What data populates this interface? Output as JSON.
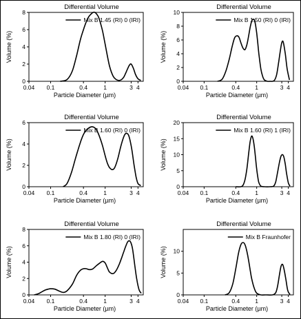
{
  "chart_data": [
    {
      "type": "line",
      "title": "Differential Volume",
      "xlabel": "Particle Diameter (µm)",
      "ylabel": "Volume (%)",
      "xscale": "log",
      "xlim": [
        0.04,
        5
      ],
      "ylim": [
        0,
        8
      ],
      "xticks": [
        0.04,
        0.1,
        0.4,
        1,
        3,
        4
      ],
      "xtick_labels": [
        "0.04",
        "0.1",
        "0.4",
        "1",
        "3",
        "4"
      ],
      "yticks": [
        0,
        2,
        4,
        6,
        8
      ],
      "legend_position": "top-right",
      "series": [
        {
          "name": "Mix B 1.45 (RI) 0 (IRI)",
          "x": [
            0.15,
            0.2,
            0.25,
            0.3,
            0.35,
            0.4,
            0.45,
            0.5,
            0.55,
            0.6,
            0.65,
            0.7,
            0.75,
            0.8,
            0.9,
            1.0,
            1.2,
            1.4,
            1.6,
            1.8,
            2.0,
            2.2,
            2.4,
            2.6,
            2.8,
            3.0,
            3.3,
            3.6,
            4.0,
            4.5
          ],
          "y": [
            0,
            0.2,
            1.2,
            3.0,
            4.8,
            6.0,
            6.9,
            7.5,
            7.8,
            8.0,
            8.0,
            7.8,
            7.5,
            7.0,
            5.8,
            4.3,
            1.8,
            0.6,
            0.2,
            0.1,
            0.2,
            0.5,
            1.0,
            1.5,
            1.9,
            2.0,
            1.5,
            0.8,
            0.3,
            0.1
          ]
        }
      ]
    },
    {
      "type": "line",
      "title": "Differential Volume",
      "xlabel": "Particle Diameter (µm)",
      "ylabel": "Volume (%)",
      "xscale": "log",
      "xlim": [
        0.04,
        5
      ],
      "ylim": [
        0,
        10
      ],
      "xticks": [
        0.04,
        0.1,
        0.4,
        1,
        3,
        4
      ],
      "xtick_labels": [
        "0.04",
        "0.1",
        "0.4",
        "1",
        "3",
        "4"
      ],
      "yticks": [
        0,
        2,
        4,
        6,
        8,
        10
      ],
      "legend_position": "top-right",
      "series": [
        {
          "name": "Mix B 1.50 (RI) 0 (IRI)",
          "x": [
            0.18,
            0.22,
            0.26,
            0.3,
            0.34,
            0.38,
            0.42,
            0.46,
            0.5,
            0.55,
            0.6,
            0.65,
            0.7,
            0.75,
            0.8,
            0.85,
            0.9,
            0.95,
            1.0,
            1.05,
            1.1,
            1.2,
            1.3,
            1.4,
            1.6,
            1.8,
            2.0,
            2.2,
            2.4,
            2.6,
            2.8,
            3.0,
            3.2,
            3.5,
            3.8,
            4.2
          ],
          "y": [
            0,
            0.3,
            1.5,
            3.2,
            5.0,
            6.3,
            6.6,
            6.4,
            5.6,
            4.8,
            4.6,
            5.3,
            6.5,
            7.8,
            8.7,
            9.0,
            8.9,
            8.2,
            7.0,
            5.5,
            4.0,
            1.8,
            0.7,
            0.2,
            0,
            0,
            0,
            0.2,
            1.0,
            2.6,
            4.3,
            5.6,
            5.7,
            4.0,
            1.8,
            0.2
          ]
        }
      ]
    },
    {
      "type": "line",
      "title": "Differential Volume",
      "xlabel": "Particle Diameter (µm)",
      "ylabel": "Volume (%)",
      "xscale": "log",
      "xlim": [
        0.04,
        5
      ],
      "ylim": [
        0,
        6
      ],
      "xticks": [
        0.04,
        0.1,
        0.4,
        1,
        3,
        4
      ],
      "xtick_labels": [
        "0.04",
        "0.1",
        "0.4",
        "1",
        "3",
        "4"
      ],
      "yticks": [
        0,
        2,
        4,
        6
      ],
      "legend_position": "top-right",
      "series": [
        {
          "name": "Mix B 1.60 (RI) 0 (IRI)",
          "x": [
            0.17,
            0.2,
            0.24,
            0.28,
            0.32,
            0.36,
            0.4,
            0.45,
            0.5,
            0.55,
            0.6,
            0.65,
            0.7,
            0.8,
            0.9,
            1.0,
            1.1,
            1.2,
            1.35,
            1.5,
            1.7,
            1.9,
            2.1,
            2.3,
            2.5,
            2.7,
            2.9,
            3.1,
            3.4,
            3.7,
            4.0,
            4.5
          ],
          "y": [
            0,
            0.3,
            1.3,
            2.5,
            3.5,
            4.3,
            4.9,
            5.3,
            5.5,
            5.6,
            5.6,
            5.5,
            5.3,
            4.6,
            3.8,
            2.9,
            2.2,
            1.8,
            1.6,
            1.8,
            2.6,
            3.6,
            4.4,
            4.9,
            5.0,
            4.8,
            4.2,
            3.4,
            2.0,
            0.9,
            0.3,
            0.1
          ]
        }
      ]
    },
    {
      "type": "line",
      "title": "Differential Volume",
      "xlabel": "Particle Diameter (µm)",
      "ylabel": "Volume (%)",
      "xscale": "log",
      "xlim": [
        0.04,
        5
      ],
      "ylim": [
        0,
        20
      ],
      "xticks": [
        0.04,
        0.1,
        0.4,
        1,
        3,
        4
      ],
      "xtick_labels": [
        "0.04",
        "0.1",
        "0.4",
        "1",
        "3",
        "4"
      ],
      "yticks": [
        0,
        5,
        10,
        15,
        20
      ],
      "legend_position": "top-right",
      "series": [
        {
          "name": "Mix B 1.60 (RI) 1 (IRI)",
          "x": [
            0.4,
            0.5,
            0.55,
            0.6,
            0.65,
            0.7,
            0.75,
            0.8,
            0.85,
            0.9,
            0.95,
            1.0,
            1.05,
            1.1,
            1.2,
            1.4,
            1.8,
            2.1,
            2.3,
            2.5,
            2.7,
            2.9,
            3.1,
            3.3,
            3.5,
            3.7,
            4.0,
            4.3
          ],
          "y": [
            0,
            0,
            0.5,
            2.2,
            5.5,
            10.0,
            14.0,
            15.8,
            15.0,
            12.5,
            9.0,
            5.5,
            3.0,
            1.3,
            0.2,
            0,
            0,
            0.2,
            1.5,
            4.5,
            7.5,
            9.5,
            10.0,
            9.2,
            7.0,
            4.2,
            1.2,
            0.2
          ]
        }
      ]
    },
    {
      "type": "line",
      "title": "Differential Volume",
      "xlabel": "Particle Diameter (µm)",
      "ylabel": "Volume (%)",
      "xscale": "log",
      "xlim": [
        0.04,
        5
      ],
      "ylim": [
        0,
        8
      ],
      "xticks": [
        0.04,
        0.1,
        0.4,
        1,
        3,
        4
      ],
      "xtick_labels": [
        "0.04",
        "0.1",
        "0.4",
        "1",
        "3",
        "4"
      ],
      "yticks": [
        0,
        2,
        4,
        6,
        8
      ],
      "legend_position": "top-right",
      "series": [
        {
          "name": "Mix B 1.80 (RI) 0 (IRI)",
          "x": [
            0.05,
            0.06,
            0.07,
            0.08,
            0.09,
            0.1,
            0.12,
            0.14,
            0.17,
            0.2,
            0.25,
            0.3,
            0.35,
            0.4,
            0.45,
            0.5,
            0.55,
            0.6,
            0.7,
            0.8,
            0.9,
            1.0,
            1.1,
            1.2,
            1.4,
            1.6,
            1.8,
            2.0,
            2.2,
            2.4,
            2.6,
            2.8,
            3.0,
            3.2,
            3.5,
            3.8,
            4.2,
            4.6
          ],
          "y": [
            0,
            0.15,
            0.4,
            0.6,
            0.7,
            0.75,
            0.7,
            0.5,
            0.3,
            0.5,
            1.3,
            2.4,
            3.0,
            3.2,
            3.2,
            3.1,
            3.1,
            3.2,
            3.6,
            3.9,
            4.1,
            3.9,
            3.3,
            2.8,
            2.6,
            3.0,
            3.7,
            4.5,
            5.3,
            6.0,
            6.5,
            6.6,
            6.3,
            5.5,
            3.6,
            1.9,
            0.6,
            0.2
          ]
        }
      ]
    },
    {
      "type": "line",
      "title": "Differential Volume",
      "xlabel": "Particle Diameter (µm)",
      "ylabel": "Volume (%)",
      "xscale": "log",
      "xlim": [
        0.04,
        5
      ],
      "ylim": [
        0,
        15
      ],
      "xticks": [
        0.04,
        0.1,
        0.4,
        1,
        3,
        4
      ],
      "xtick_labels": [
        "0.04",
        "0.1",
        "0.4",
        "1",
        "3",
        "4"
      ],
      "yticks": [
        0,
        5,
        10
      ],
      "legend_position": "top-right",
      "series": [
        {
          "name": "Mix B Fraunhofer",
          "x": [
            0.25,
            0.3,
            0.35,
            0.4,
            0.45,
            0.5,
            0.55,
            0.6,
            0.65,
            0.7,
            0.75,
            0.8,
            0.9,
            1.0,
            1.2,
            1.5,
            2.0,
            2.3,
            2.5,
            2.7,
            2.9,
            3.1,
            3.3,
            3.6,
            3.9,
            4.3
          ],
          "y": [
            0,
            0.5,
            2.5,
            6.0,
            9.5,
            11.5,
            12.0,
            11.5,
            10.0,
            8.0,
            5.8,
            3.8,
            1.5,
            0.4,
            0,
            0,
            0,
            0.5,
            2.0,
            4.5,
            6.5,
            7.0,
            6.0,
            3.5,
            1.0,
            0.1
          ]
        }
      ]
    }
  ]
}
